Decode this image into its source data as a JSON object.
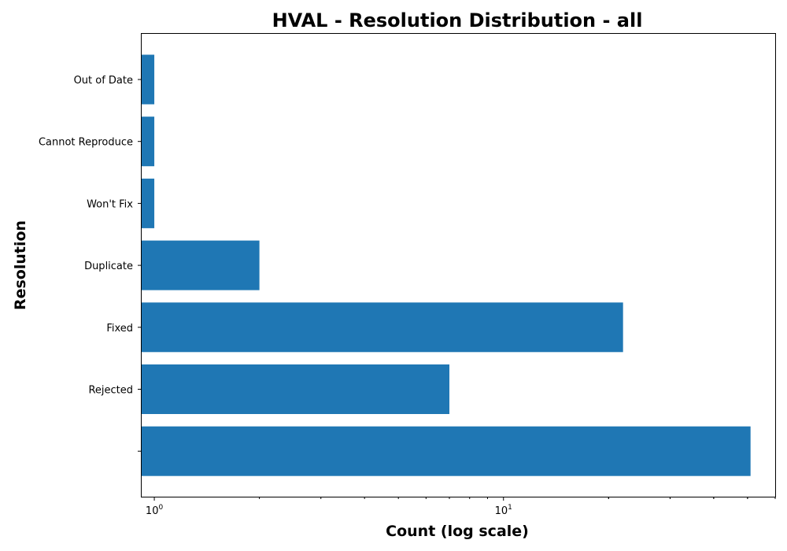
{
  "chart_data": {
    "type": "bar",
    "orientation": "horizontal",
    "title": "HVAL - Resolution Distribution - all",
    "xlabel": "Count (log scale)",
    "ylabel": "Resolution",
    "x_scale": "log",
    "xlim": [
      0.92,
      60
    ],
    "x_major_ticks": [
      {
        "base": "10",
        "exp": "0",
        "value": 1
      },
      {
        "base": "10",
        "exp": "1",
        "value": 10
      }
    ],
    "categories": [
      "",
      "Rejected",
      "Fixed",
      "Duplicate",
      "Won't Fix",
      "Cannot Reproduce",
      "Out of Date"
    ],
    "values": [
      51,
      7,
      22,
      2,
      1,
      1,
      1
    ],
    "bar_color": "#1f77b4",
    "grid": false,
    "legend": "none"
  }
}
